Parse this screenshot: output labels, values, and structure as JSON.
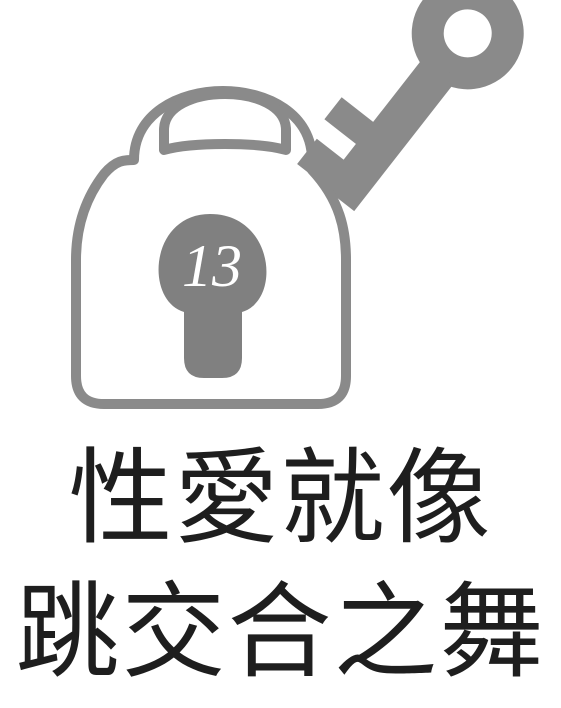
{
  "illustration": {
    "lock_number": "13",
    "colors": {
      "icon_gray": "#8a8a8a",
      "icon_dark_gray": "#808080",
      "background": "#ffffff"
    }
  },
  "title": {
    "line1": "性愛就像",
    "line2": "跳交合之舞"
  }
}
